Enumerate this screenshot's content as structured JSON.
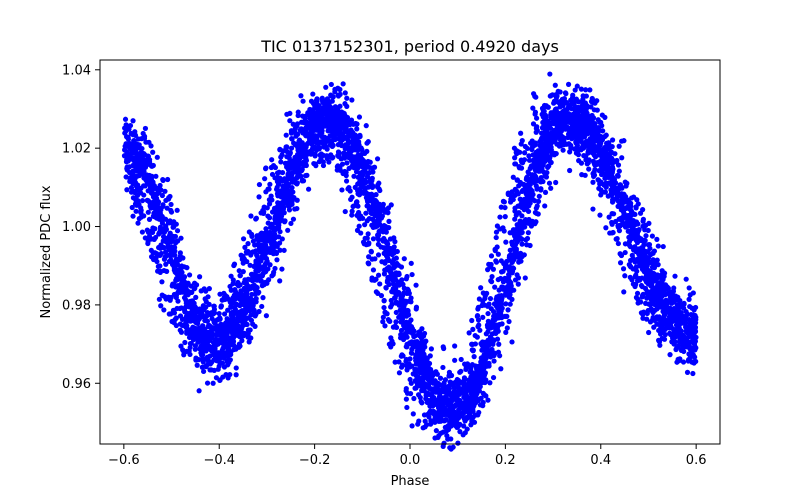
{
  "chart_data": {
    "type": "scatter",
    "title": "TIC 0137152301, period 0.4920 days",
    "xlabel": "Phase",
    "ylabel": "Normalized PDC flux",
    "xlim": [
      -0.65,
      0.65
    ],
    "ylim": [
      0.9445,
      1.0425
    ],
    "grid": false,
    "legend": "none",
    "x_ticks": [
      {
        "value": -0.6,
        "label": "−0.6"
      },
      {
        "value": -0.4,
        "label": "−0.4"
      },
      {
        "value": -0.2,
        "label": "−0.2"
      },
      {
        "value": 0.0,
        "label": "0.0"
      },
      {
        "value": 0.2,
        "label": "0.2"
      },
      {
        "value": 0.4,
        "label": "0.4"
      },
      {
        "value": 0.6,
        "label": "0.6"
      }
    ],
    "y_ticks": [
      {
        "value": 0.96,
        "label": "0.96"
      },
      {
        "value": 0.98,
        "label": "0.98"
      },
      {
        "value": 1.0,
        "label": "1.00"
      },
      {
        "value": 1.02,
        "label": "1.02"
      },
      {
        "value": 1.04,
        "label": "1.04"
      }
    ],
    "series": [
      {
        "name": "PDC flux",
        "color": "#0000ff",
        "marker": "circle",
        "phase_range": [
          -0.6,
          0.6
        ],
        "model": {
          "minima": [
            {
              "phase": -0.41,
              "flux": 0.97
            },
            {
              "phase": 0.09,
              "flux": 0.953
            }
          ],
          "maxima": [
            {
              "phase": -0.17,
              "flux": 1.027
            },
            {
              "phase": 0.33,
              "flux": 1.028
            }
          ],
          "start_flux": 1.02,
          "end_flux": 0.972,
          "scatter": 0.004,
          "phase_spread": 0.035,
          "n_points": 5200,
          "seed": 137152301
        }
      }
    ]
  }
}
